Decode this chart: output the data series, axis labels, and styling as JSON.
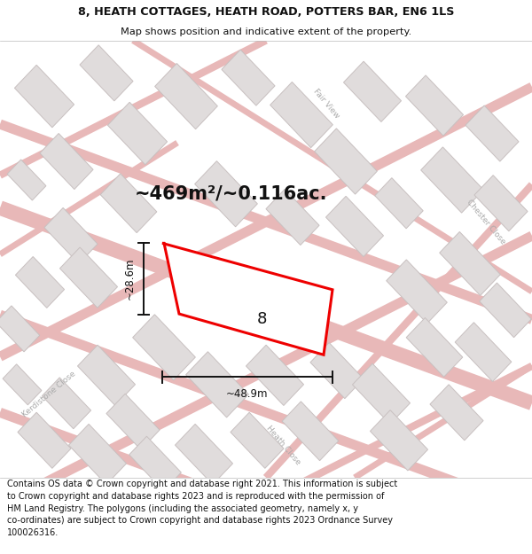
{
  "title_line1": "8, HEATH COTTAGES, HEATH ROAD, POTTERS BAR, EN6 1LS",
  "title_line2": "Map shows position and indicative extent of the property.",
  "area_text": "~469m²/~0.116ac.",
  "width_label": "~48.9m",
  "height_label": "~28.6m",
  "property_number": "8",
  "footer_text": "Contains OS data © Crown copyright and database right 2021. This information is subject to Crown copyright and database rights 2023 and is reproduced with the permission of HM Land Registry. The polygons (including the associated geometry, namely x, y co-ordinates) are subject to Crown copyright and database rights 2023 Ordnance Survey 100026316.",
  "map_bg": "#f7f4f4",
  "title_bg": "#ffffff",
  "footer_bg": "#ffffff",
  "road_outline_color": "#e8b8b8",
  "road_fill_color": "#f9f4f4",
  "building_fill": "#e0dcdc",
  "building_stroke": "#c8c0c0",
  "highlight_color": "#ee0000",
  "text_color": "#111111",
  "street_label_color": "#aaaaaa",
  "dim_line_color": "#111111"
}
